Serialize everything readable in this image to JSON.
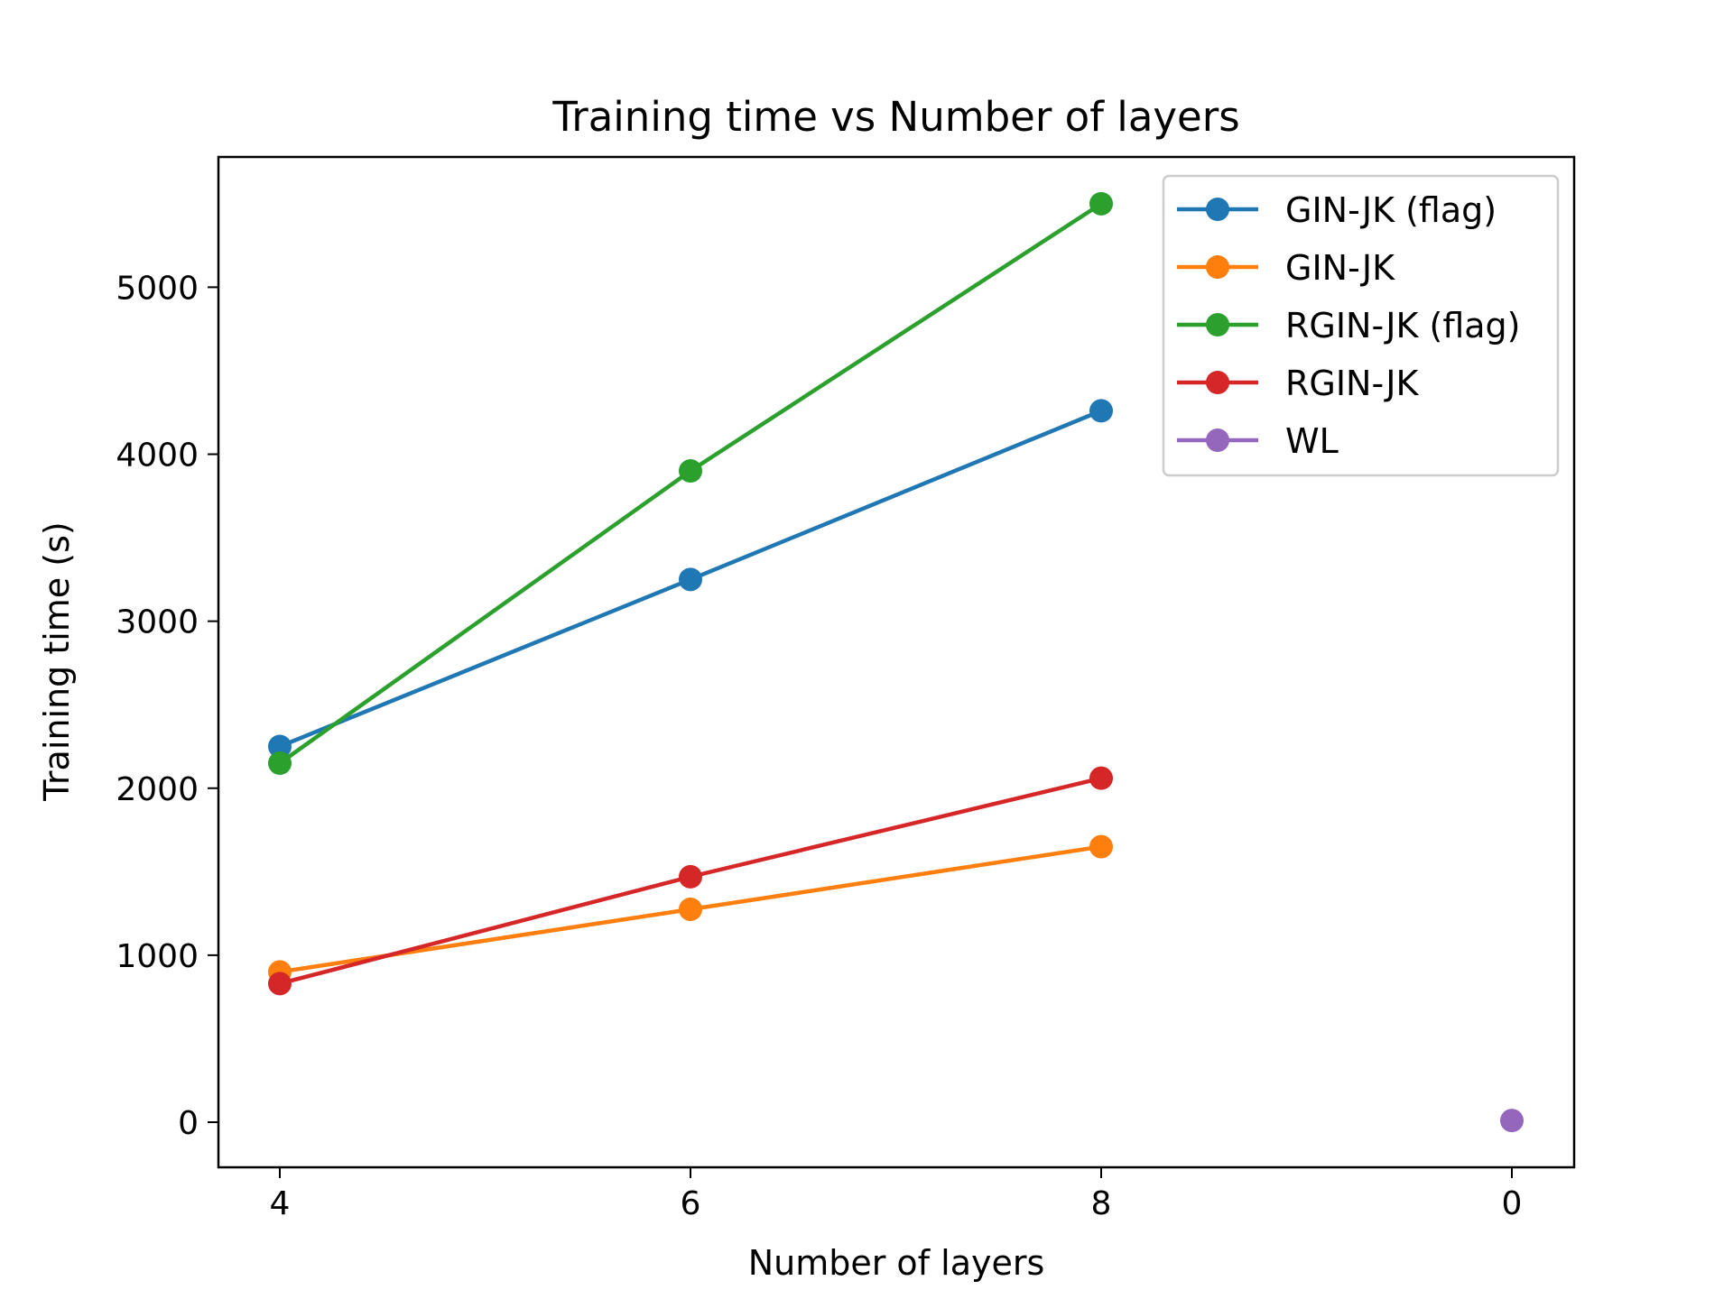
{
  "chart_data": {
    "type": "line",
    "title": "Training time vs Number of layers",
    "xlabel": "Number of layers",
    "ylabel": "Training time (s)",
    "categories": [
      "4",
      "6",
      "8",
      "0"
    ],
    "ylim": [
      -270,
      5780
    ],
    "yticks": [
      0,
      1000,
      2000,
      3000,
      4000,
      5000
    ],
    "grid": false,
    "legend_position": "top-right",
    "series": [
      {
        "name": "GIN-JK (flag)",
        "color": "#1f77b4",
        "values": [
          2250,
          3250,
          4260,
          null
        ]
      },
      {
        "name": "GIN-JK",
        "color": "#ff7f0e",
        "values": [
          900,
          1275,
          1650,
          null
        ]
      },
      {
        "name": "RGIN-JK (flag)",
        "color": "#2ca02c",
        "values": [
          2150,
          3900,
          5500,
          null
        ]
      },
      {
        "name": "RGIN-JK",
        "color": "#d62728",
        "values": [
          830,
          1470,
          2060,
          null
        ]
      },
      {
        "name": "WL",
        "color": "#9467bd",
        "values": [
          null,
          null,
          null,
          10
        ]
      }
    ]
  }
}
